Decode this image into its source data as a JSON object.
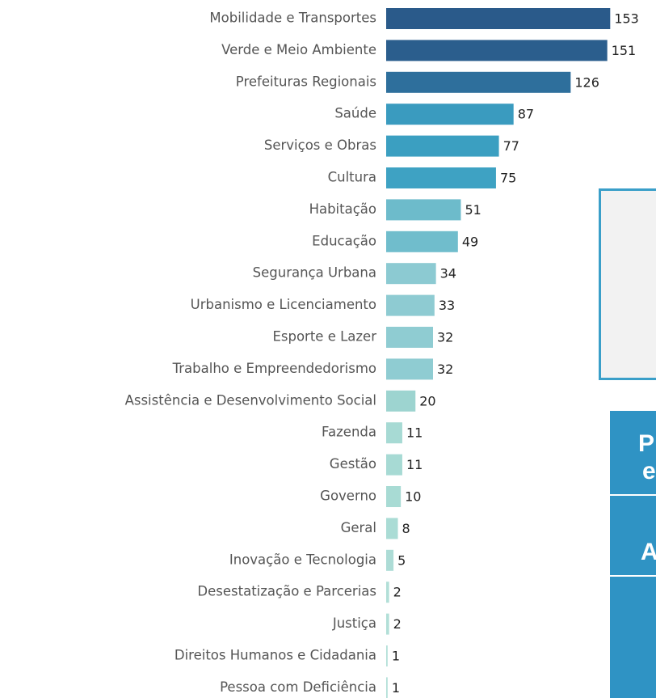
{
  "chart_data": {
    "type": "bar",
    "orientation": "horizontal",
    "categories": [
      "Mobilidade e Transportes",
      "Verde e Meio Ambiente",
      "Prefeituras Regionais",
      "Saúde",
      "Serviços e Obras",
      "Cultura",
      "Habitação",
      "Educação",
      "Segurança Urbana",
      "Urbanismo e Licenciamento",
      "Esporte e Lazer",
      "Trabalho e Empreendedorismo",
      "Assistência e Desenvolvimento Social",
      "Fazenda",
      "Gestão",
      "Governo",
      "Geral",
      "Inovação e Tecnologia",
      "Desestatização e Parcerias",
      "Justiça",
      "Direitos Humanos e Cidadania",
      "Pessoa com Deficiência"
    ],
    "values": [
      153,
      151,
      126,
      87,
      77,
      75,
      51,
      49,
      34,
      33,
      32,
      32,
      20,
      11,
      11,
      10,
      8,
      5,
      2,
      2,
      1,
      1
    ],
    "colors": [
      "#2a5a8a",
      "#2b5e8d",
      "#2e6f9c",
      "#3a9bbf",
      "#3b9fc1",
      "#3ea2c3",
      "#6dbbcb",
      "#70bdcc",
      "#8ccad2",
      "#8ecbd2",
      "#8fccd2",
      "#8fccd2",
      "#9dd4d0",
      "#a7dad4",
      "#a7dad4",
      "#a8dbd4",
      "#aadcd5",
      "#addcd6",
      "#b2dfd8",
      "#b2dfd8",
      "#b4e0d9",
      "#b4e0d9"
    ],
    "xlim": [
      0,
      160
    ]
  },
  "panels": [
    {
      "text": "P"
    },
    {
      "text": "e"
    },
    {
      "text": "A"
    }
  ]
}
